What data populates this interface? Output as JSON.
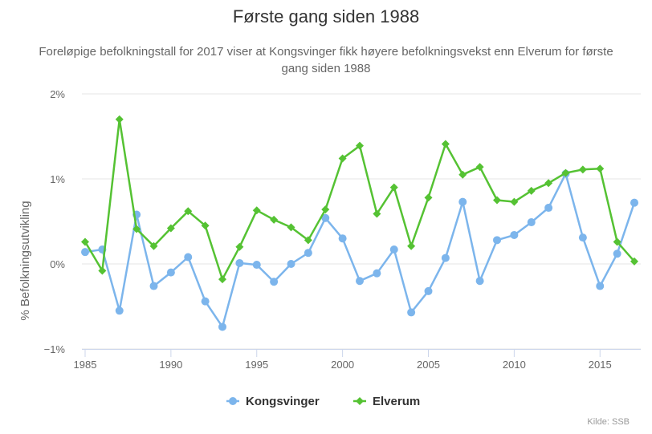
{
  "chart_data": {
    "type": "line",
    "title": "Første gang siden 1988",
    "subtitle": "Foreløpige befolkningstall for 2017 viser at Kongsvinger fikk høyere befolkningsvekst enn Elverum for første gang siden 1988",
    "ylabel": "% Befolkningsutvikling",
    "xlabel": "",
    "x": [
      1985,
      1986,
      1987,
      1988,
      1989,
      1990,
      1991,
      1992,
      1993,
      1994,
      1995,
      1996,
      1997,
      1998,
      1999,
      2000,
      2001,
      2002,
      2003,
      2004,
      2005,
      2006,
      2007,
      2008,
      2009,
      2010,
      2011,
      2012,
      2013,
      2014,
      2015,
      2016,
      2017
    ],
    "xlim": [
      1985,
      2017
    ],
    "ylim": [
      -1,
      2
    ],
    "yticks": [
      "2%",
      "1%",
      "0%",
      "−1%"
    ],
    "xticks": [
      "1985",
      "1990",
      "1995",
      "2000",
      "2005",
      "2010",
      "2015"
    ],
    "series": [
      {
        "name": "Kongsvinger",
        "color": "#7cb5ec",
        "marker": "circle",
        "values": [
          0.14,
          0.17,
          -0.55,
          0.58,
          -0.26,
          -0.1,
          0.08,
          -0.44,
          -0.74,
          0.01,
          -0.01,
          -0.21,
          0.0,
          0.13,
          0.54,
          0.3,
          -0.2,
          -0.11,
          0.17,
          -0.57,
          -0.32,
          0.07,
          0.73,
          -0.2,
          0.28,
          0.34,
          0.49,
          0.66,
          1.06,
          0.31,
          -0.26,
          0.12,
          0.72
        ]
      },
      {
        "name": "Elverum",
        "color": "#55c233",
        "marker": "diamond",
        "values": [
          0.26,
          -0.08,
          1.7,
          0.41,
          0.21,
          0.42,
          0.62,
          0.45,
          -0.18,
          0.2,
          0.63,
          0.52,
          0.43,
          0.28,
          0.64,
          1.24,
          1.39,
          0.59,
          0.9,
          0.21,
          0.78,
          1.41,
          1.05,
          1.14,
          0.75,
          0.73,
          0.86,
          0.95,
          1.07,
          1.11,
          1.12,
          0.26,
          0.03
        ]
      }
    ],
    "legend_position": "bottom-center",
    "credits": "Kilde: SSB"
  }
}
